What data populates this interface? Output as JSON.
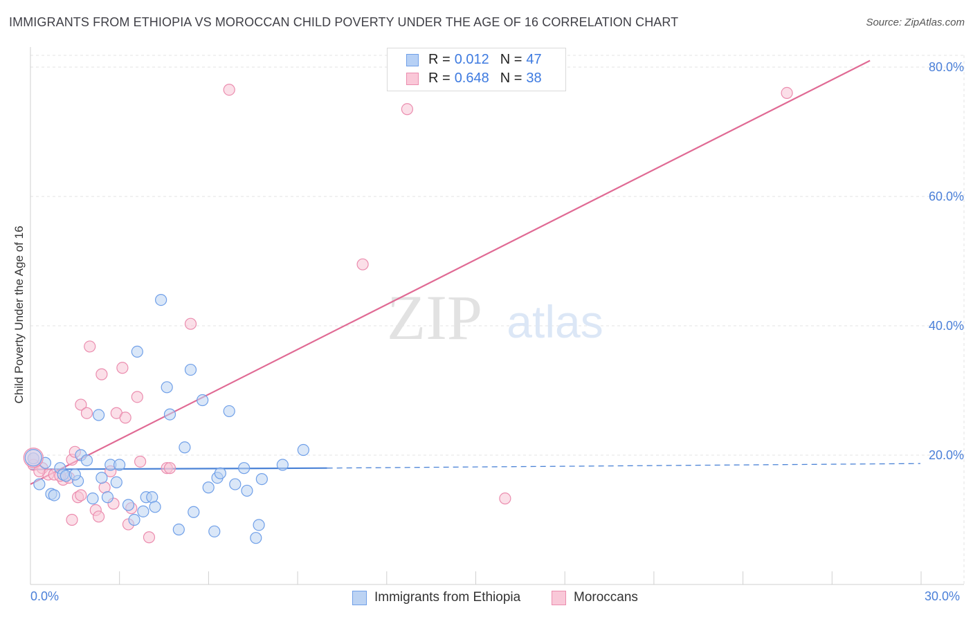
{
  "title": "IMMIGRANTS FROM ETHIOPIA VS MOROCCAN CHILD POVERTY UNDER THE AGE OF 16 CORRELATION CHART",
  "source": "Source: ZipAtlas.com",
  "watermark": {
    "zip": "ZIP",
    "atlas": "atlas"
  },
  "legend": {
    "r_label": "R =",
    "n_label": "N =",
    "rows": [
      {
        "r": "0.012",
        "n": "47",
        "fill": "#b6d0f5",
        "stroke": "#6f9fe8"
      },
      {
        "r": "0.648",
        "n": "38",
        "fill": "#fac8d8",
        "stroke": "#eb8cae"
      }
    ]
  },
  "colors": {
    "blue": "#4a82d6",
    "blue_fill": "#bcd3f3",
    "pink": "#e06a94",
    "pink_fill": "#f7c4d6",
    "tick_label": "#4a7fd8",
    "grid": "#e3e3e3"
  },
  "chart_data": {
    "type": "scatter",
    "title": "IMMIGRANTS FROM ETHIOPIA VS MOROCCAN CHILD POVERTY UNDER THE AGE OF 16 CORRELATION CHART",
    "xlabel": "",
    "ylabel": "Child Poverty Under the Age of 16",
    "xlim": [
      0,
      30
    ],
    "ylim": [
      0,
      80
    ],
    "x_ticks": [
      {
        "value": 0,
        "label": "0.0%"
      },
      {
        "value": 30,
        "label": "30.0%"
      }
    ],
    "y_ticks": [
      {
        "value": 80,
        "label": "80.0%"
      },
      {
        "value": 60,
        "label": "60.0%"
      },
      {
        "value": 40,
        "label": "40.0%"
      },
      {
        "value": 20,
        "label": "20.0%"
      }
    ],
    "series": [
      {
        "name": "Immigrants from Ethiopia",
        "color": "blue",
        "points": [
          [
            0.1,
            19.5
          ],
          [
            0.3,
            15.5
          ],
          [
            0.5,
            18.8
          ],
          [
            0.7,
            14.0
          ],
          [
            0.8,
            13.8
          ],
          [
            1.0,
            18.0
          ],
          [
            1.1,
            17.0
          ],
          [
            1.2,
            16.8
          ],
          [
            1.6,
            16.0
          ],
          [
            1.7,
            20.0
          ],
          [
            1.9,
            19.2
          ],
          [
            2.1,
            13.3
          ],
          [
            2.3,
            26.2
          ],
          [
            2.4,
            16.5
          ],
          [
            2.6,
            13.5
          ],
          [
            2.7,
            18.5
          ],
          [
            2.9,
            15.8
          ],
          [
            3.0,
            18.5
          ],
          [
            3.3,
            12.3
          ],
          [
            3.5,
            10.0
          ],
          [
            3.6,
            36.0
          ],
          [
            3.8,
            11.3
          ],
          [
            3.9,
            13.5
          ],
          [
            4.1,
            13.5
          ],
          [
            4.2,
            12.0
          ],
          [
            4.4,
            44.0
          ],
          [
            4.6,
            30.5
          ],
          [
            4.7,
            26.3
          ],
          [
            5.0,
            8.5
          ],
          [
            5.2,
            21.2
          ],
          [
            5.4,
            33.2
          ],
          [
            5.5,
            11.2
          ],
          [
            5.8,
            28.5
          ],
          [
            6.0,
            15.0
          ],
          [
            6.2,
            8.2
          ],
          [
            6.3,
            16.5
          ],
          [
            6.4,
            17.2
          ],
          [
            6.7,
            26.8
          ],
          [
            6.9,
            15.5
          ],
          [
            7.2,
            18.0
          ],
          [
            7.3,
            14.5
          ],
          [
            7.6,
            7.2
          ],
          [
            7.7,
            9.2
          ],
          [
            7.8,
            16.3
          ],
          [
            8.5,
            18.5
          ],
          [
            9.2,
            20.8
          ],
          [
            1.5,
            17.0
          ]
        ],
        "trend": {
          "x": [
            0,
            10
          ],
          "y": [
            17.8,
            18.0
          ],
          "dashed_to": [
            30,
            18.7
          ]
        }
      },
      {
        "name": "Moroccans",
        "color": "pink",
        "points": [
          [
            0.1,
            18.5
          ],
          [
            0.4,
            18.0
          ],
          [
            0.6,
            17.0
          ],
          [
            0.8,
            17.0
          ],
          [
            1.1,
            16.2
          ],
          [
            1.3,
            16.5
          ],
          [
            1.4,
            19.3
          ],
          [
            1.5,
            20.5
          ],
          [
            1.4,
            10.0
          ],
          [
            1.6,
            13.5
          ],
          [
            1.7,
            13.8
          ],
          [
            1.7,
            27.8
          ],
          [
            1.9,
            26.5
          ],
          [
            2.0,
            36.8
          ],
          [
            2.2,
            11.5
          ],
          [
            2.3,
            10.5
          ],
          [
            2.4,
            32.5
          ],
          [
            2.5,
            15.0
          ],
          [
            2.7,
            17.5
          ],
          [
            2.8,
            12.5
          ],
          [
            2.9,
            26.5
          ],
          [
            3.1,
            33.5
          ],
          [
            3.2,
            25.8
          ],
          [
            3.3,
            9.3
          ],
          [
            3.4,
            11.8
          ],
          [
            3.6,
            29.0
          ],
          [
            3.7,
            19.0
          ],
          [
            4.0,
            7.3
          ],
          [
            4.6,
            18.0
          ],
          [
            4.7,
            18.0
          ],
          [
            5.4,
            40.3
          ],
          [
            6.7,
            76.5
          ],
          [
            11.2,
            49.5
          ],
          [
            12.7,
            73.5
          ],
          [
            16.0,
            13.3
          ],
          [
            25.5,
            76.0
          ],
          [
            0.3,
            17.5
          ],
          [
            1.0,
            16.8
          ]
        ],
        "trend": {
          "x": [
            0,
            28.3
          ],
          "y": [
            15.5,
            81.0
          ]
        }
      }
    ],
    "legend": [
      "Immigrants from Ethiopia",
      "Moroccans"
    ]
  }
}
